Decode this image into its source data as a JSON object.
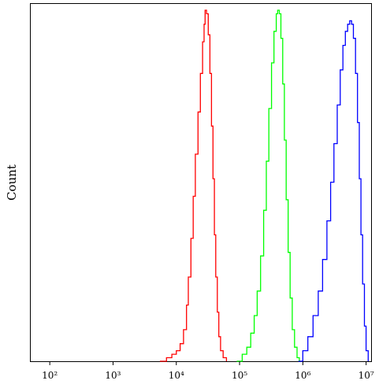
{
  "chart_data": {
    "type": "line",
    "title": "",
    "xlabel": "",
    "ylabel": "Count",
    "x_scale": "log",
    "xlim": [
      50,
      12000000
    ],
    "ylim": [
      0,
      1.0
    ],
    "x_ticks": [
      {
        "value": 100,
        "label": "10²"
      },
      {
        "value": 1000,
        "label": "10³"
      },
      {
        "value": 10000,
        "label": "10⁴"
      },
      {
        "value": 100000,
        "label": "10⁵"
      },
      {
        "value": 1000000,
        "label": "10⁶"
      },
      {
        "value": 10000000,
        "label": "10⁷"
      }
    ],
    "grid": false,
    "legend": "none",
    "series": [
      {
        "color": "#ff0000",
        "points": [
          [
            5500,
            0.0
          ],
          [
            7000,
            0.01
          ],
          [
            8500,
            0.02
          ],
          [
            10000,
            0.03
          ],
          [
            11500,
            0.05
          ],
          [
            13000,
            0.09
          ],
          [
            14500,
            0.16
          ],
          [
            15500,
            0.24
          ],
          [
            17000,
            0.35
          ],
          [
            18500,
            0.47
          ],
          [
            20000,
            0.59
          ],
          [
            22000,
            0.71
          ],
          [
            24000,
            0.82
          ],
          [
            26000,
            0.91
          ],
          [
            27500,
            0.96
          ],
          [
            28500,
            1.0
          ],
          [
            30000,
            0.99
          ],
          [
            32000,
            0.93
          ],
          [
            34000,
            0.82
          ],
          [
            36000,
            0.67
          ],
          [
            38000,
            0.52
          ],
          [
            40000,
            0.36
          ],
          [
            42000,
            0.24
          ],
          [
            44500,
            0.14
          ],
          [
            47000,
            0.07
          ],
          [
            50000,
            0.03
          ],
          [
            55000,
            0.01
          ],
          [
            62000,
            0.0
          ]
        ]
      },
      {
        "color": "#00ff00",
        "points": [
          [
            90000,
            0.0
          ],
          [
            110000,
            0.02
          ],
          [
            130000,
            0.04
          ],
          [
            150000,
            0.08
          ],
          [
            170000,
            0.13
          ],
          [
            190000,
            0.2
          ],
          [
            215000,
            0.3
          ],
          [
            240000,
            0.43
          ],
          [
            265000,
            0.57
          ],
          [
            290000,
            0.72
          ],
          [
            320000,
            0.85
          ],
          [
            350000,
            0.94
          ],
          [
            380000,
            0.99
          ],
          [
            400000,
            1.0
          ],
          [
            425000,
            0.99
          ],
          [
            450000,
            0.92
          ],
          [
            480000,
            0.79
          ],
          [
            510000,
            0.63
          ],
          [
            545000,
            0.46
          ],
          [
            585000,
            0.31
          ],
          [
            630000,
            0.18
          ],
          [
            680000,
            0.09
          ],
          [
            740000,
            0.04
          ],
          [
            810000,
            0.01
          ],
          [
            880000,
            0.0
          ]
        ]
      },
      {
        "color": "#0000ff",
        "points": [
          [
            850000,
            0.0
          ],
          [
            1000000,
            0.03
          ],
          [
            1200000,
            0.07
          ],
          [
            1450000,
            0.13
          ],
          [
            1750000,
            0.2
          ],
          [
            2050000,
            0.29
          ],
          [
            2400000,
            0.4
          ],
          [
            2750000,
            0.51
          ],
          [
            3100000,
            0.62
          ],
          [
            3500000,
            0.73
          ],
          [
            3900000,
            0.83
          ],
          [
            4300000,
            0.9
          ],
          [
            4700000,
            0.94
          ],
          [
            5100000,
            0.96
          ],
          [
            5500000,
            0.97
          ],
          [
            5900000,
            0.96
          ],
          [
            6300000,
            0.92
          ],
          [
            6800000,
            0.82
          ],
          [
            7300000,
            0.68
          ],
          [
            7800000,
            0.52
          ],
          [
            8300000,
            0.36
          ],
          [
            8800000,
            0.22
          ],
          [
            9400000,
            0.1
          ],
          [
            10000000,
            0.03
          ],
          [
            10800000,
            0.0
          ]
        ]
      }
    ]
  }
}
